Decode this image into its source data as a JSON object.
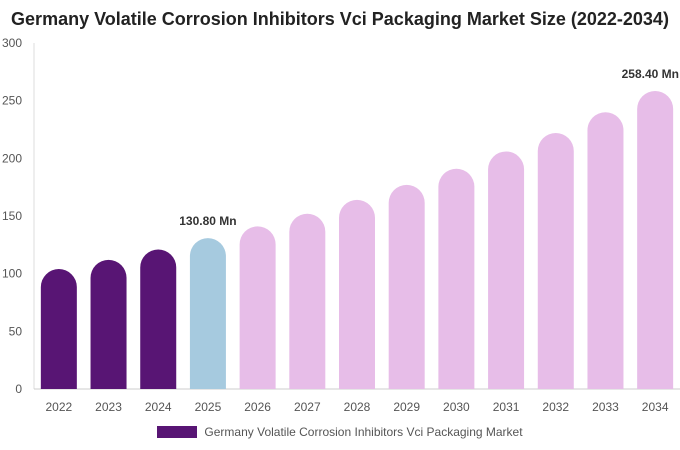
{
  "chart_data": {
    "type": "bar",
    "title": "Germany Volatile Corrosion Inhibitors Vci Packaging Market Size (2022-2034)",
    "categories": [
      "2022",
      "2023",
      "2024",
      "2025",
      "2026",
      "2027",
      "2028",
      "2029",
      "2030",
      "2031",
      "2032",
      "2033",
      "2034"
    ],
    "series": [
      {
        "name": "Germany Volatile Corrosion Inhibitors Vci Packaging Market",
        "values": [
          104,
          112,
          121,
          130.8,
          141,
          152,
          164,
          177,
          191,
          206,
          222,
          240,
          258.4
        ]
      }
    ],
    "bar_colors": [
      "#581574",
      "#581574",
      "#581574",
      "#a6cadf",
      "#e7bde8",
      "#e7bde8",
      "#e7bde8",
      "#e7bde8",
      "#e7bde8",
      "#e7bde8",
      "#e7bde8",
      "#e7bde8",
      "#e7bde8"
    ],
    "data_labels": [
      {
        "index": 3,
        "text": "130.80 Mn"
      },
      {
        "index": 12,
        "text": "258.40 Mn"
      }
    ],
    "ylim": [
      0,
      300
    ],
    "yticks": [
      0,
      50,
      100,
      150,
      200,
      250,
      300
    ],
    "xlabel": "",
    "ylabel": "",
    "grid": false,
    "legend_position": "bottom",
    "legend_color": "#581574"
  }
}
